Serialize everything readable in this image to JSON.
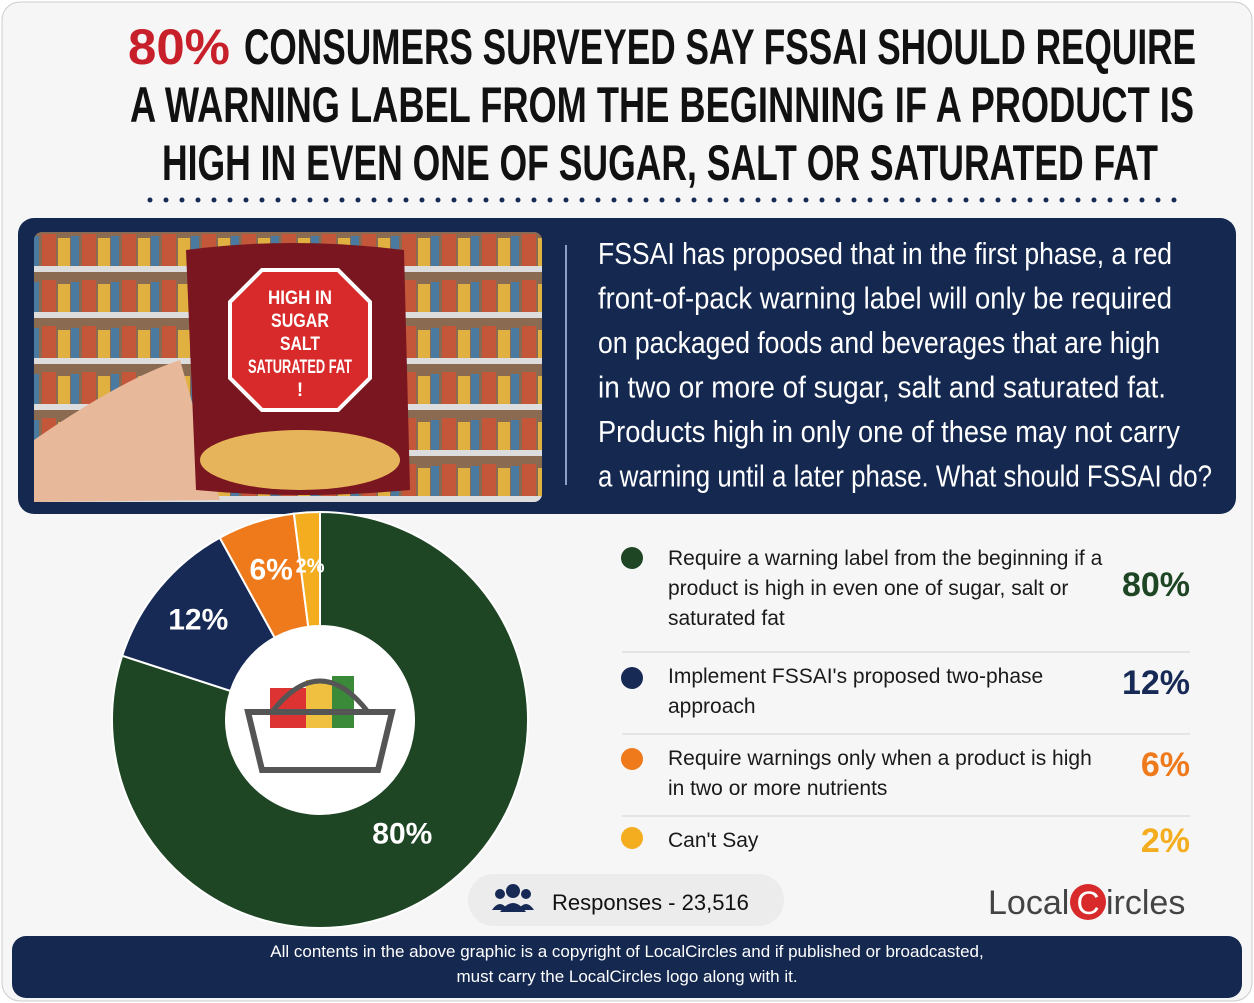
{
  "header": {
    "title_highlight": "80%",
    "title_lines": [
      "CONSUMERS SURVEYED SAY FSSAI SHOULD REQUIRE",
      "A WARNING LABEL FROM THE BEGINNING IF A PRODUCT IS",
      "HIGH IN EVEN ONE OF SUGAR, SALT OR SATURATED FAT"
    ]
  },
  "image_label": [
    "HIGH IN",
    "SUGAR",
    "SALT",
    "SATURATED FAT",
    "!"
  ],
  "description_lines": [
    "FSSAI has proposed that in the first phase, a red",
    "front-of-pack warning label will only be required",
    "on packaged foods and beverages that are high",
    "in two or more of sugar, salt and saturated fat.",
    "Products high in only one of these may not carry",
    "a warning until a later phase. What should FSSAI do?"
  ],
  "chart_data": {
    "type": "pie",
    "categories": [
      "Require a warning label from the beginning if a product is high in even one of sugar, salt or saturated fat",
      "Implement FSSAI's proposed two-phase approach",
      "Require warnings only when a product is high in two or more nutrients",
      "Can't Say"
    ],
    "values": [
      80,
      12,
      6,
      2
    ],
    "value_labels": [
      "80%",
      "12%",
      "6%",
      "2%"
    ],
    "colors": [
      "#1e4524",
      "#172a55",
      "#ee7a1c",
      "#f4ad1e"
    ]
  },
  "responses": "Responses - 23,516",
  "logo": {
    "left": "Local",
    "mark": "C",
    "right": "ircles"
  },
  "footer_lines": [
    "All contents in the above graphic is a copyright of LocalCircles and if published or broadcasted,",
    "must carry the LocalCircles logo along with it."
  ]
}
